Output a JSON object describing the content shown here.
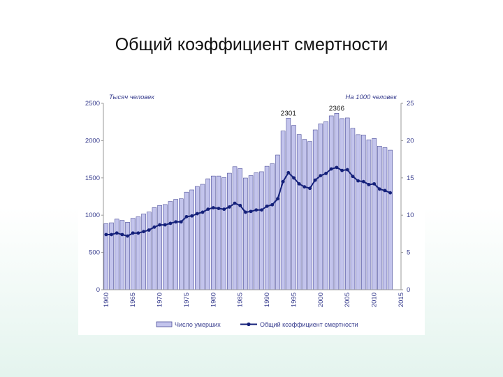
{
  "slide": {
    "title": "Общий коэффициент смертности"
  },
  "chart_data": {
    "type": "bar",
    "y_left_unit": "Тысяч человек",
    "y_right_unit": "На 1000 человек",
    "ylim_left": [
      0,
      2500
    ],
    "ylim_right": [
      0,
      25
    ],
    "yticks_left": [
      0,
      500,
      1000,
      1500,
      2000,
      2500
    ],
    "yticks_right": [
      0,
      5,
      10,
      15,
      20,
      25
    ],
    "xticks": [
      1960,
      1965,
      1970,
      1975,
      1980,
      1985,
      1990,
      1995,
      2000,
      2005,
      2010,
      2015
    ],
    "x": [
      1960,
      1961,
      1962,
      1963,
      1964,
      1965,
      1966,
      1967,
      1968,
      1969,
      1970,
      1971,
      1972,
      1973,
      1974,
      1975,
      1976,
      1977,
      1978,
      1979,
      1980,
      1981,
      1982,
      1983,
      1984,
      1985,
      1986,
      1987,
      1988,
      1989,
      1990,
      1991,
      1992,
      1993,
      1994,
      1995,
      1996,
      1997,
      1998,
      1999,
      2000,
      2001,
      2002,
      2003,
      2004,
      2005,
      2006,
      2007,
      2008,
      2009,
      2010,
      2011,
      2012,
      2013
    ],
    "series": [
      {
        "name": "Число умерших",
        "kind": "bar",
        "axis": "left",
        "values": [
          886,
          898,
          947,
          931,
          905,
          958,
          978,
          1017,
          1042,
          1101,
          1131,
          1143,
          1184,
          1212,
          1220,
          1309,
          1339,
          1385,
          1414,
          1488,
          1525,
          1525,
          1504,
          1563,
          1650,
          1625,
          1498,
          1531,
          1569,
          1583,
          1656,
          1690,
          1807,
          2129,
          2301,
          2204,
          2082,
          2016,
          1988,
          2144,
          2225,
          2255,
          2332,
          2366,
          2295,
          2304,
          2166,
          2080,
          2076,
          2011,
          2029,
          1926,
          1906,
          1872
        ]
      },
      {
        "name": "Общий коэффициент смертности",
        "kind": "line",
        "axis": "right",
        "values": [
          7.4,
          7.4,
          7.6,
          7.4,
          7.2,
          7.6,
          7.6,
          7.8,
          8.0,
          8.4,
          8.7,
          8.7,
          8.9,
          9.1,
          9.1,
          9.8,
          9.9,
          10.2,
          10.4,
          10.8,
          11.0,
          10.9,
          10.8,
          11.1,
          11.6,
          11.3,
          10.4,
          10.5,
          10.7,
          10.7,
          11.2,
          11.4,
          12.2,
          14.5,
          15.7,
          15.0,
          14.2,
          13.8,
          13.6,
          14.7,
          15.3,
          15.6,
          16.2,
          16.4,
          16.0,
          16.1,
          15.2,
          14.6,
          14.5,
          14.1,
          14.2,
          13.5,
          13.3,
          13.0
        ]
      }
    ],
    "annotations": [
      {
        "x": 1994,
        "text": "2301"
      },
      {
        "x": 2003,
        "text": "2366"
      }
    ],
    "legend_position": "bottom",
    "colors": {
      "bar_fill": "#c3c4ec",
      "bar_stroke": "#4d4f9a",
      "line": "#14207a",
      "axis_text": "#3a3f8f"
    },
    "grid": false
  }
}
